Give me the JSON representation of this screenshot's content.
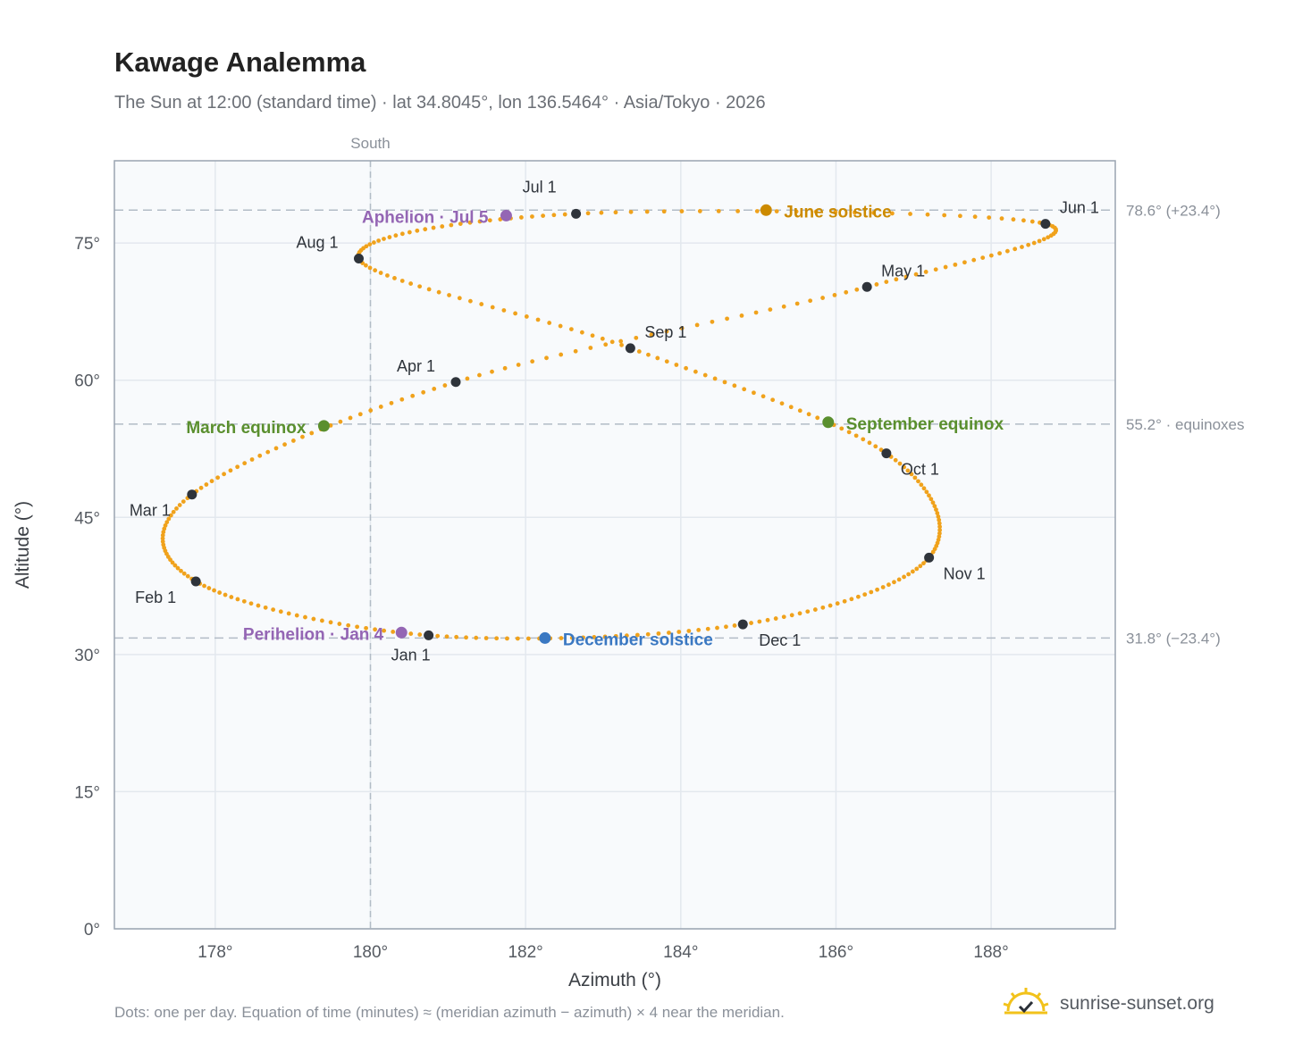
{
  "title": "Kawage Analemma",
  "subtitle": "The Sun at 12:00 (standard time) · lat 34.8045°, lon 136.5464° · Asia/Tokyo · 2026",
  "footnote": "Dots: one per day. Equation of time (minutes) ≈ (meridian azimuth − azimuth) × 4 near the meridian.",
  "brand": {
    "name": "sunrise-sunset.org",
    "icon": "sun-logo-icon"
  },
  "colors": {
    "path": "#f0a21c",
    "month": "#2f343b",
    "equinox": "#5a8f2e",
    "june": "#cc8a00",
    "december": "#3a78c2",
    "apsis": "#9466b4",
    "grid": "#e3e8ee",
    "plot_bg": "#f8fafc",
    "frame": "#9aa4b1",
    "ref": "#b2bcc6"
  },
  "chart_data": {
    "type": "scatter",
    "title": "Kawage Analemma",
    "xlabel": "Azimuth (°)",
    "ylabel": "Altitude (°)",
    "xlim": [
      176.7,
      189.6
    ],
    "ylim": [
      0,
      84
    ],
    "x_ticks": [
      178,
      180,
      182,
      184,
      186,
      188
    ],
    "x_tick_labels": [
      "178°",
      "180°",
      "182°",
      "184°",
      "186°",
      "188°"
    ],
    "y_ticks": [
      0,
      15,
      30,
      45,
      60,
      75
    ],
    "y_tick_labels": [
      "0°",
      "15°",
      "30°",
      "45°",
      "60°",
      "75°"
    ],
    "grid": true,
    "south_line": {
      "x": 180,
      "label": "South"
    },
    "reference_lines": [
      {
        "y": 78.6,
        "label": "78.6° (+23.4°)"
      },
      {
        "y": 55.2,
        "label": "55.2° · equinoxes"
      },
      {
        "y": 31.8,
        "label": "31.8° (−23.4°)"
      }
    ],
    "months": [
      {
        "label": "Jan 1",
        "az": 180.75,
        "alt": 32.1
      },
      {
        "label": "Feb 1",
        "az": 177.75,
        "alt": 38.0
      },
      {
        "label": "Mar 1",
        "az": 177.7,
        "alt": 47.5
      },
      {
        "label": "Apr 1",
        "az": 181.1,
        "alt": 59.8
      },
      {
        "label": "May 1",
        "az": 186.4,
        "alt": 70.2
      },
      {
        "label": "Jun 1",
        "az": 188.7,
        "alt": 77.1
      },
      {
        "label": "Jul 1",
        "az": 182.65,
        "alt": 78.2
      },
      {
        "label": "Aug 1",
        "az": 179.85,
        "alt": 73.3
      },
      {
        "label": "Sep 1",
        "az": 183.35,
        "alt": 63.5
      },
      {
        "label": "Oct 1",
        "az": 186.65,
        "alt": 52.0
      },
      {
        "label": "Nov 1",
        "az": 187.2,
        "alt": 40.6
      },
      {
        "label": "Dec 1",
        "az": 184.8,
        "alt": 33.3
      }
    ],
    "events": [
      {
        "label": "March equinox",
        "az": 179.4,
        "alt": 55.0,
        "kind": "equinox"
      },
      {
        "label": "June solstice",
        "az": 185.1,
        "alt": 78.6,
        "kind": "june"
      },
      {
        "label": "September equinox",
        "az": 185.9,
        "alt": 55.4,
        "kind": "equinox"
      },
      {
        "label": "December solstice",
        "az": 182.25,
        "alt": 31.8,
        "kind": "december"
      },
      {
        "label": "Perihelion · Jan 4",
        "az": 180.4,
        "alt": 32.4,
        "kind": "apsis"
      },
      {
        "label": "Aphelion · Jul 5",
        "az": 181.75,
        "alt": 78.0,
        "kind": "apsis"
      }
    ]
  }
}
